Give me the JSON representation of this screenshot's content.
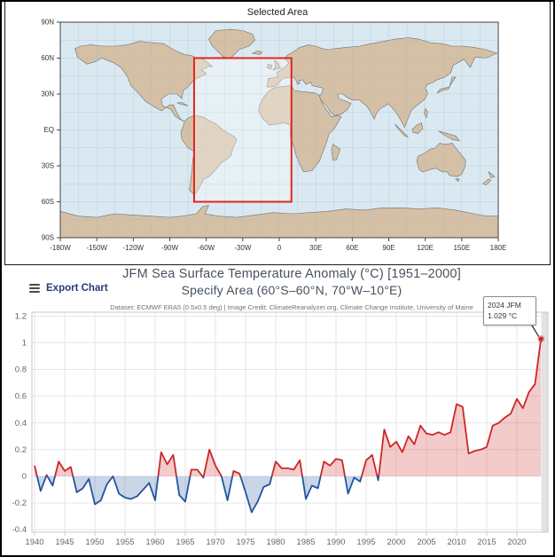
{
  "map": {
    "title": "Selected Area",
    "lat_ticks": [
      90,
      60,
      30,
      0,
      -30,
      -60,
      -90
    ],
    "lat_labels": [
      "90N",
      "60N",
      "30N",
      "EQ",
      "30S",
      "60S",
      "90S"
    ],
    "lon_ticks": [
      -180,
      -150,
      -120,
      -90,
      -60,
      -30,
      0,
      30,
      60,
      90,
      120,
      150,
      180
    ],
    "lon_labels": [
      "-180W",
      "-150W",
      "-120W",
      "-90W",
      "-60W",
      "-30W",
      "0",
      "30E",
      "60E",
      "90E",
      "120E",
      "150E",
      "180E"
    ],
    "selection": {
      "lon_min": -70,
      "lon_max": 10,
      "lat_min": -60,
      "lat_max": 60
    },
    "colors": {
      "ocean": "#dae9f1",
      "land": "#d5c0a5",
      "coast": "#6f6f6f",
      "grid": "#9db9cb",
      "selection_box": "#e3231d"
    }
  },
  "toolbar": {
    "export_label": "Export Chart"
  },
  "chart": {
    "title": "JFM Sea Surface Temperature Anomaly (°C) [1951–2000]",
    "subtitle": "Specify Area (60°S–60°N, 70°W–10°E)",
    "credit": "Dataset: ECMWF ERA5 (0.5x0.5 deg) | Image Credit: ClimateReanalyzer.org, Climate Change Institute, University of Maine",
    "annotation": {
      "title": "2024 JFM",
      "value": "1.029 °C"
    },
    "y_tick_labels": [
      "1.2",
      "1",
      "0.8",
      "0.6",
      "0.4",
      "0.2",
      "0",
      "-0.2",
      "-0.4"
    ],
    "x_tick_labels": [
      "1940",
      "1945",
      "1950",
      "1955",
      "1960",
      "1965",
      "1970",
      "1975",
      "1980",
      "1985",
      "1990",
      "1995",
      "2000",
      "2005",
      "2010",
      "2015",
      "2020"
    ],
    "colors": {
      "line_positive": "#cc2727",
      "line_negative": "#2255a0",
      "fill_positive": "rgba(204,39,39,0.24)",
      "fill_negative": "rgba(34,85,160,0.24)",
      "grid": "#e6e6e6",
      "plot_border": "#c8c8c8",
      "right_strip": "#e2e2e2"
    }
  },
  "chart_data": {
    "type": "line",
    "title": "JFM Sea Surface Temperature Anomaly (°C) [1951–2000]",
    "subtitle": "Specify Area (60°S–60°N, 70°W–10°E)",
    "xlabel": "",
    "ylabel": "",
    "ylim": [
      -0.4,
      1.2
    ],
    "xlim": [
      1939.5,
      2025.3
    ],
    "grid": true,
    "x_ticks": [
      1940,
      1945,
      1950,
      1955,
      1960,
      1965,
      1970,
      1975,
      1980,
      1985,
      1990,
      1995,
      2000,
      2005,
      2010,
      2015,
      2020
    ],
    "y_ticks": [
      1.2,
      1,
      0.8,
      0.6,
      0.4,
      0.2,
      0,
      -0.2,
      -0.4
    ],
    "x": [
      1940,
      1941,
      1942,
      1943,
      1944,
      1945,
      1946,
      1947,
      1948,
      1949,
      1950,
      1951,
      1952,
      1953,
      1954,
      1955,
      1956,
      1957,
      1958,
      1959,
      1960,
      1961,
      1962,
      1963,
      1964,
      1965,
      1966,
      1967,
      1968,
      1969,
      1970,
      1971,
      1972,
      1973,
      1974,
      1975,
      1976,
      1977,
      1978,
      1979,
      1980,
      1981,
      1982,
      1983,
      1984,
      1985,
      1986,
      1987,
      1988,
      1989,
      1990,
      1991,
      1992,
      1993,
      1994,
      1995,
      1996,
      1997,
      1998,
      1999,
      2000,
      2001,
      2002,
      2003,
      2004,
      2005,
      2006,
      2007,
      2008,
      2009,
      2010,
      2011,
      2012,
      2013,
      2014,
      2015,
      2016,
      2017,
      2018,
      2019,
      2020,
      2021,
      2022,
      2023,
      2024
    ],
    "values": [
      0.08,
      -0.11,
      0.01,
      -0.07,
      0.11,
      0.04,
      0.07,
      -0.12,
      -0.09,
      -0.02,
      -0.21,
      -0.18,
      -0.06,
      0.0,
      -0.13,
      -0.16,
      -0.17,
      -0.15,
      -0.1,
      -0.05,
      -0.18,
      0.18,
      0.09,
      0.16,
      -0.14,
      -0.19,
      0.05,
      0.05,
      -0.01,
      0.2,
      0.08,
      0.0,
      -0.18,
      0.04,
      0.02,
      -0.12,
      -0.27,
      -0.19,
      -0.08,
      -0.06,
      0.11,
      0.06,
      0.06,
      0.05,
      0.12,
      -0.17,
      -0.07,
      -0.09,
      0.11,
      0.08,
      0.13,
      0.12,
      -0.13,
      -0.01,
      -0.04,
      0.12,
      0.16,
      -0.03,
      0.35,
      0.22,
      0.26,
      0.18,
      0.3,
      0.24,
      0.38,
      0.32,
      0.31,
      0.33,
      0.31,
      0.33,
      0.54,
      0.52,
      0.17,
      0.19,
      0.2,
      0.22,
      0.38,
      0.4,
      0.44,
      0.47,
      0.58,
      0.51,
      0.63,
      0.69,
      1.029
    ],
    "annotation_point": {
      "year": 2024,
      "value": 1.029,
      "label": "2024 JFM 1.029 °C"
    },
    "zero_baseline": 0
  }
}
